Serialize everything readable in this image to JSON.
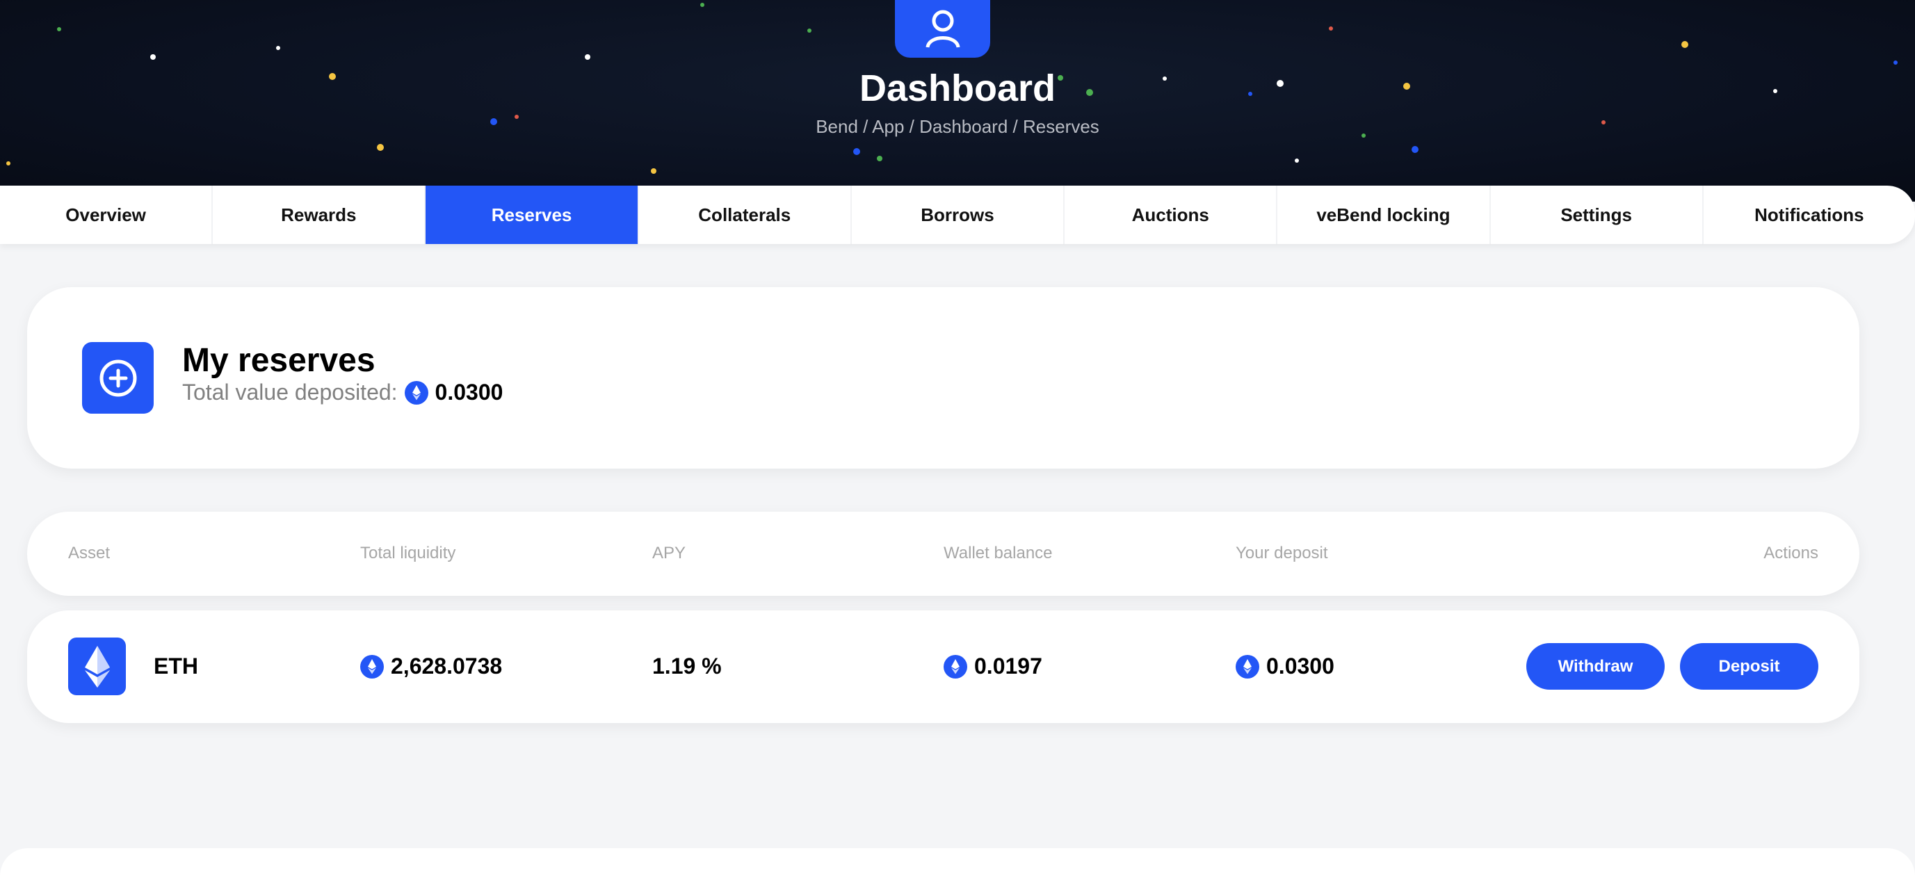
{
  "header": {
    "title": "Dashboard",
    "breadcrumb": "Bend / App / Dashboard / Reserves",
    "avatar_icon": "user-icon"
  },
  "tabs": [
    {
      "label": "Overview"
    },
    {
      "label": "Rewards"
    },
    {
      "label": "Reserves",
      "active": true
    },
    {
      "label": "Collaterals"
    },
    {
      "label": "Borrows"
    },
    {
      "label": "Auctions"
    },
    {
      "label": "veBend locking"
    },
    {
      "label": "Settings"
    },
    {
      "label": "Notifications"
    }
  ],
  "summary": {
    "title": "My reserves",
    "label": "Total value deposited:",
    "value": "0.0300",
    "icon": "plus-circle-icon"
  },
  "table": {
    "headers": {
      "asset": "Asset",
      "liquidity": "Total liquidity",
      "apy": "APY",
      "wallet": "Wallet balance",
      "deposit": "Your deposit",
      "actions": "Actions"
    },
    "rows": [
      {
        "asset": "ETH",
        "liquidity": "2,628.0738",
        "apy": "1.19 %",
        "wallet": "0.0197",
        "deposit": "0.0300",
        "withdraw": "Withdraw",
        "deposit_btn": "Deposit"
      }
    ]
  },
  "colors": {
    "accent": "#2356f6",
    "hero_bg": "#0b1120"
  }
}
